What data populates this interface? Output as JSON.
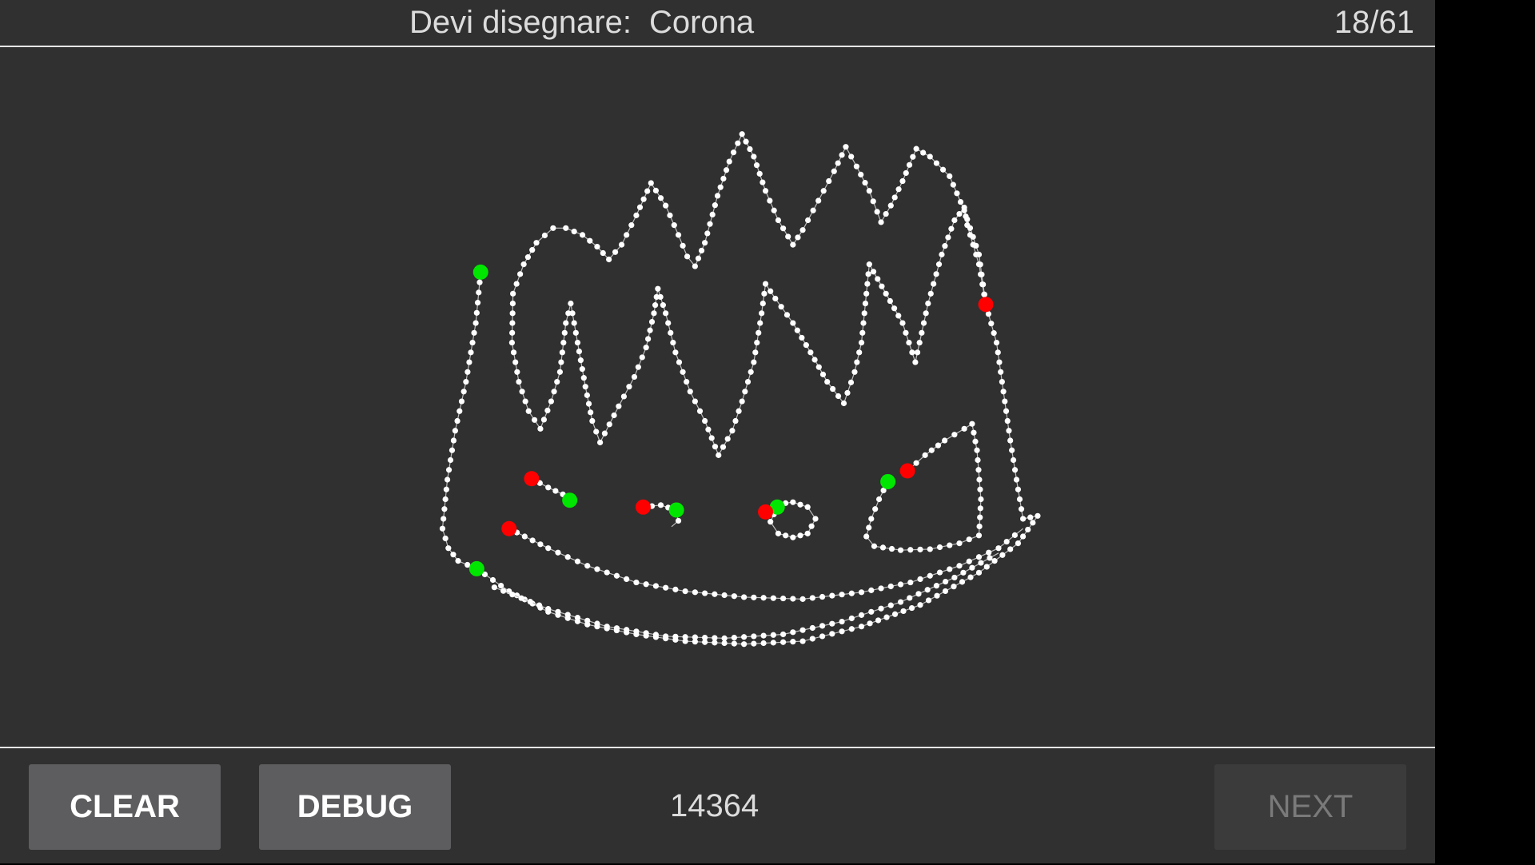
{
  "header": {
    "prompt_label": "Devi disegnare:",
    "prompt_word": "Corona",
    "progress": "18/61"
  },
  "footer": {
    "clear_label": "CLEAR",
    "debug_label": "DEBUG",
    "score": "14364",
    "next_label": "NEXT",
    "next_enabled": false
  },
  "colors": {
    "background": "#303030",
    "stroke_points": "#ffffff",
    "stroke_start": "#00e600",
    "stroke_end": "#ff0000"
  }
}
